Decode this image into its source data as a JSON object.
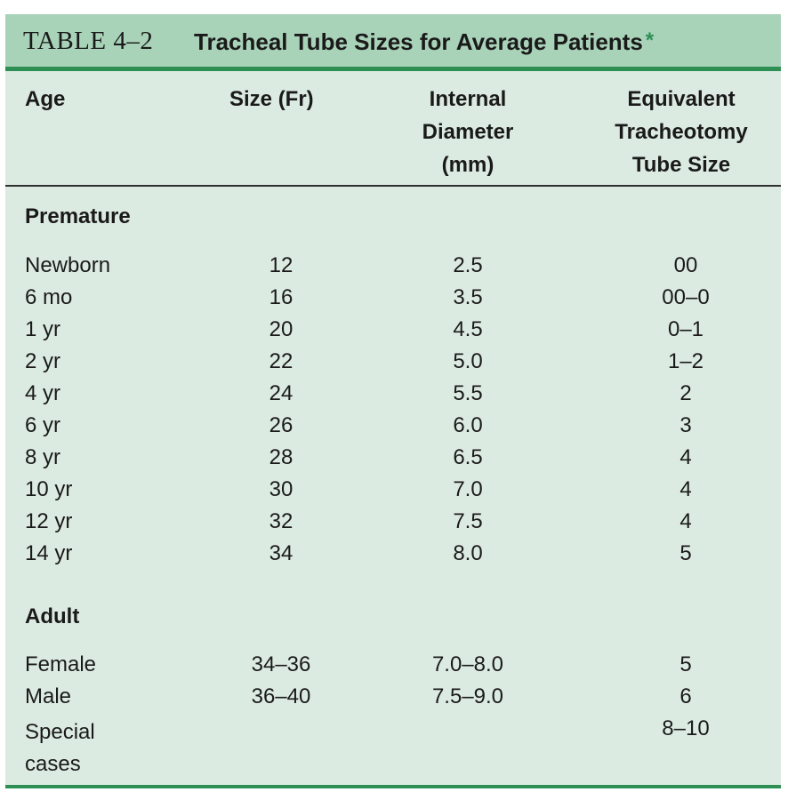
{
  "title": {
    "prefix": "TABLE 4–2",
    "text": "Tracheal Tube Sizes for Average Patients",
    "star": "*"
  },
  "headers": {
    "age": "Age",
    "size": "Size (Fr)",
    "id_line1": "Internal",
    "id_line2": "Diameter",
    "id_line3": "(mm)",
    "eq_line1": "Equivalent",
    "eq_line2": "Tracheotomy",
    "eq_line3": "Tube Size"
  },
  "sections": {
    "premature": "Premature",
    "adult": "Adult"
  },
  "premature_rows": [
    {
      "age": "Newborn",
      "size": "12",
      "id": "2.5",
      "eq": "00"
    },
    {
      "age": "6 mo",
      "size": "16",
      "id": "3.5",
      "eq": "00–0"
    },
    {
      "age": "1 yr",
      "size": "20",
      "id": "4.5",
      "eq": "0–1"
    },
    {
      "age": "2 yr",
      "size": "22",
      "id": "5.0",
      "eq": "1–2"
    },
    {
      "age": "4 yr",
      "size": "24",
      "id": "5.5",
      "eq": "2"
    },
    {
      "age": "6 yr",
      "size": "26",
      "id": "6.0",
      "eq": "3"
    },
    {
      "age": "8 yr",
      "size": "28",
      "id": "6.5",
      "eq": "4"
    },
    {
      "age": "10 yr",
      "size": "30",
      "id": "7.0",
      "eq": "4"
    },
    {
      "age": "12 yr",
      "size": "32",
      "id": "7.5",
      "eq": "4"
    },
    {
      "age": "14 yr",
      "size": "34",
      "id": "8.0",
      "eq": "5"
    }
  ],
  "adult_rows": [
    {
      "age": "Female",
      "size": "34–36",
      "id": "7.0–8.0",
      "eq": "5"
    },
    {
      "age": "Male",
      "size": "36–40",
      "id": "7.5–9.0",
      "eq": "6"
    },
    {
      "age_line1": "Special",
      "age_line2": "cases",
      "size": "",
      "id": "",
      "eq": "8–10"
    }
  ]
}
